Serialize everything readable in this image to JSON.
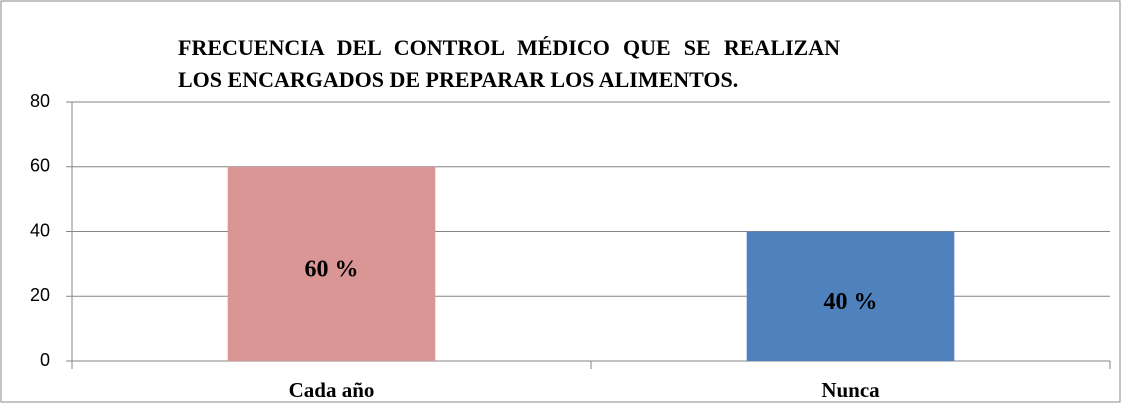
{
  "chart_data": {
    "type": "bar",
    "title": "FRECUENCIA DEL CONTROL MÉDICO QUE SE REALIZAN LOS ENCARGADOS DE PREPARAR LOS ALIMENTOS.",
    "categories": [
      "Cada año",
      "Nunca"
    ],
    "values": [
      60,
      40
    ],
    "value_labels": [
      "60 %",
      "40 %"
    ],
    "colors": [
      "#d99694",
      "#4f81bd"
    ],
    "ylim": [
      0,
      80
    ],
    "yticks": [
      0,
      20,
      40,
      60,
      80
    ],
    "grid": true
  }
}
